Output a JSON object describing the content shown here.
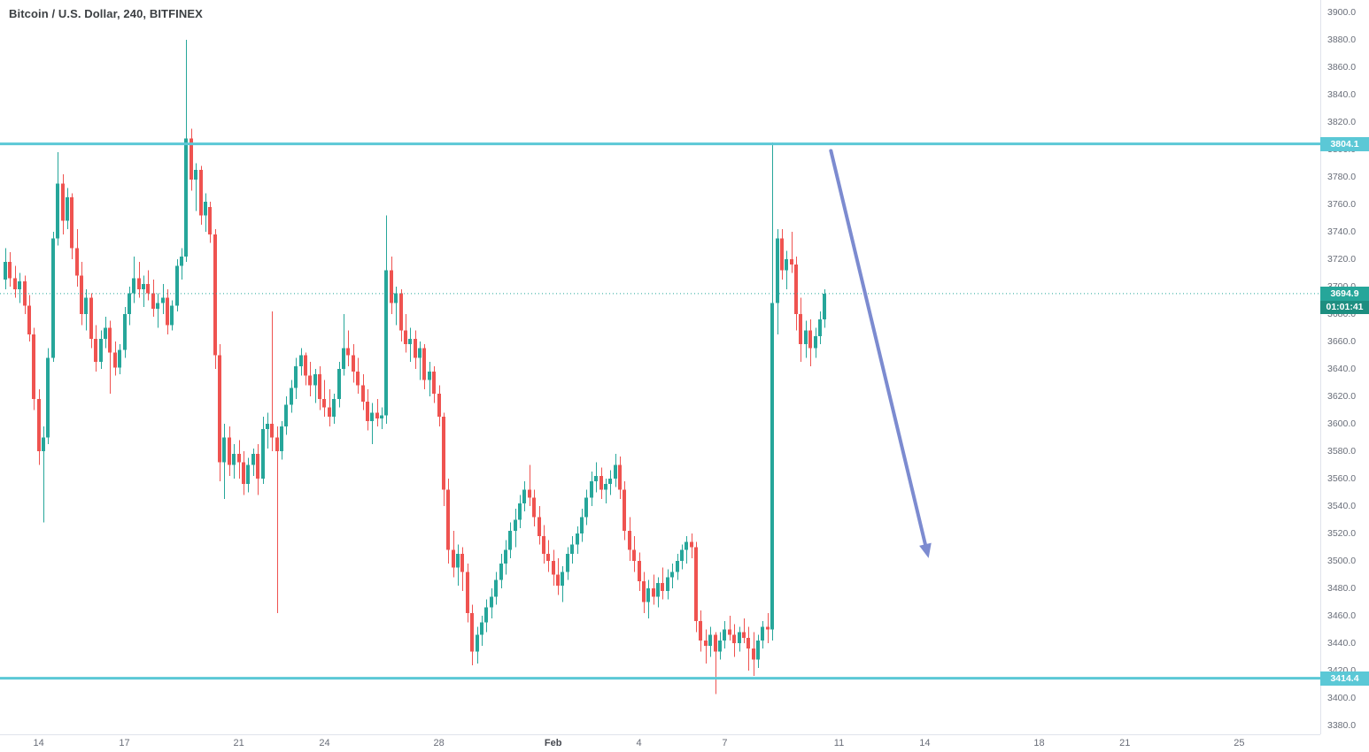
{
  "header": {
    "title": "Bitcoin / U.S. Dollar, 240, BITFINEX"
  },
  "colors": {
    "up": "#26a69a",
    "down": "#ef5350",
    "drawn_line": "#5bc8d6",
    "arrow": "#7c8bd0",
    "price_label_bg": "#26a69a",
    "countdown_bg": "#1d8e80",
    "axis_text": "#686d78"
  },
  "chart_data": {
    "type": "candlestick",
    "symbol": "Bitcoin / U.S. Dollar",
    "interval": "240",
    "exchange": "BITFINEX",
    "y_axis": {
      "min": 3380,
      "max": 3900,
      "step": 20,
      "decimals": 1
    },
    "x_axis": {
      "labels": [
        {
          "label": "14",
          "bar": 7
        },
        {
          "label": "17",
          "bar": 25
        },
        {
          "label": "21",
          "bar": 49
        },
        {
          "label": "24",
          "bar": 67
        },
        {
          "label": "28",
          "bar": 91
        },
        {
          "label": "Feb",
          "bar": 115,
          "bold": true
        },
        {
          "label": "4",
          "bar": 133
        },
        {
          "label": "7",
          "bar": 151
        },
        {
          "label": "11",
          "bar": 175
        },
        {
          "label": "14",
          "bar": 193
        },
        {
          "label": "18",
          "bar": 217
        },
        {
          "label": "21",
          "bar": 235
        },
        {
          "label": "25",
          "bar": 259
        }
      ]
    },
    "price_lines": [
      {
        "label": "3804.1",
        "value": 3804.1
      },
      {
        "label": "3414.4",
        "value": 3414.4
      }
    ],
    "current_price": {
      "label": "3694.9",
      "value": 3694.9,
      "countdown": "01:01:41"
    },
    "arrow": {
      "from": {
        "bar": 173.3,
        "price": 3799
      },
      "to": {
        "bar": 193.8,
        "price": 3502
      }
    },
    "candles": [
      [
        3705,
        3728,
        3698,
        3718
      ],
      [
        3718,
        3725,
        3700,
        3706
      ],
      [
        3706,
        3715,
        3692,
        3698
      ],
      [
        3698,
        3710,
        3688,
        3704
      ],
      [
        3704,
        3708,
        3680,
        3686
      ],
      [
        3686,
        3694,
        3660,
        3665
      ],
      [
        3665,
        3670,
        3610,
        3618
      ],
      [
        3618,
        3625,
        3570,
        3580
      ],
      [
        3580,
        3598,
        3528,
        3590
      ],
      [
        3590,
        3655,
        3585,
        3648
      ],
      [
        3648,
        3740,
        3645,
        3735
      ],
      [
        3735,
        3798,
        3730,
        3775
      ],
      [
        3775,
        3782,
        3738,
        3748
      ],
      [
        3748,
        3772,
        3742,
        3765
      ],
      [
        3765,
        3768,
        3720,
        3728
      ],
      [
        3728,
        3742,
        3700,
        3708
      ],
      [
        3708,
        3718,
        3672,
        3680
      ],
      [
        3680,
        3698,
        3668,
        3692
      ],
      [
        3692,
        3695,
        3655,
        3662
      ],
      [
        3662,
        3672,
        3638,
        3645
      ],
      [
        3645,
        3668,
        3640,
        3662
      ],
      [
        3662,
        3678,
        3655,
        3670
      ],
      [
        3670,
        3675,
        3622,
        3652
      ],
      [
        3652,
        3660,
        3635,
        3641
      ],
      [
        3641,
        3658,
        3636,
        3654
      ],
      [
        3654,
        3685,
        3648,
        3680
      ],
      [
        3680,
        3700,
        3672,
        3695
      ],
      [
        3695,
        3722,
        3688,
        3706
      ],
      [
        3706,
        3718,
        3692,
        3698
      ],
      [
        3698,
        3708,
        3685,
        3702
      ],
      [
        3702,
        3712,
        3690,
        3695
      ],
      [
        3695,
        3705,
        3678,
        3684
      ],
      [
        3684,
        3695,
        3670,
        3688
      ],
      [
        3688,
        3702,
        3680,
        3692
      ],
      [
        3692,
        3698,
        3665,
        3672
      ],
      [
        3672,
        3690,
        3668,
        3686
      ],
      [
        3686,
        3720,
        3682,
        3715
      ],
      [
        3715,
        3728,
        3705,
        3722
      ],
      [
        3722,
        3880,
        3718,
        3808
      ],
      [
        3808,
        3815,
        3770,
        3778
      ],
      [
        3778,
        3790,
        3755,
        3785
      ],
      [
        3785,
        3788,
        3745,
        3752
      ],
      [
        3752,
        3768,
        3740,
        3762
      ],
      [
        3758,
        3762,
        3732,
        3738
      ],
      [
        3738,
        3742,
        3640,
        3650
      ],
      [
        3650,
        3658,
        3558,
        3572
      ],
      [
        3572,
        3600,
        3545,
        3590
      ],
      [
        3590,
        3598,
        3562,
        3570
      ],
      [
        3570,
        3585,
        3560,
        3578
      ],
      [
        3578,
        3588,
        3560,
        3572
      ],
      [
        3572,
        3580,
        3548,
        3556
      ],
      [
        3556,
        3575,
        3550,
        3570
      ],
      [
        3570,
        3582,
        3562,
        3578
      ],
      [
        3578,
        3585,
        3548,
        3560
      ],
      [
        3560,
        3605,
        3556,
        3596
      ],
      [
        3596,
        3608,
        3582,
        3600
      ],
      [
        3600,
        3682,
        3580,
        3590
      ],
      [
        3590,
        3598,
        3462,
        3580
      ],
      [
        3580,
        3602,
        3574,
        3598
      ],
      [
        3598,
        3620,
        3592,
        3614
      ],
      [
        3614,
        3632,
        3608,
        3626
      ],
      [
        3626,
        3648,
        3618,
        3642
      ],
      [
        3642,
        3655,
        3635,
        3650
      ],
      [
        3650,
        3652,
        3628,
        3635
      ],
      [
        3635,
        3645,
        3620,
        3628
      ],
      [
        3628,
        3640,
        3615,
        3636
      ],
      [
        3636,
        3642,
        3610,
        3618
      ],
      [
        3618,
        3632,
        3605,
        3612
      ],
      [
        3612,
        3625,
        3598,
        3605
      ],
      [
        3605,
        3622,
        3600,
        3618
      ],
      [
        3618,
        3645,
        3612,
        3640
      ],
      [
        3640,
        3680,
        3635,
        3655
      ],
      [
        3655,
        3668,
        3642,
        3650
      ],
      [
        3650,
        3658,
        3630,
        3638
      ],
      [
        3638,
        3648,
        3622,
        3628
      ],
      [
        3628,
        3636,
        3610,
        3616
      ],
      [
        3616,
        3625,
        3595,
        3602
      ],
      [
        3602,
        3615,
        3585,
        3608
      ],
      [
        3608,
        3618,
        3598,
        3604
      ],
      [
        3604,
        3612,
        3596,
        3606
      ],
      [
        3606,
        3752,
        3600,
        3712
      ],
      [
        3712,
        3722,
        3680,
        3688
      ],
      [
        3688,
        3700,
        3672,
        3695
      ],
      [
        3695,
        3698,
        3660,
        3668
      ],
      [
        3668,
        3680,
        3652,
        3658
      ],
      [
        3658,
        3670,
        3645,
        3662
      ],
      [
        3662,
        3668,
        3640,
        3648
      ],
      [
        3648,
        3660,
        3632,
        3655
      ],
      [
        3655,
        3658,
        3625,
        3632
      ],
      [
        3632,
        3645,
        3620,
        3638
      ],
      [
        3638,
        3642,
        3615,
        3622
      ],
      [
        3622,
        3628,
        3598,
        3605
      ],
      [
        3605,
        3608,
        3540,
        3552
      ],
      [
        3552,
        3560,
        3498,
        3508
      ],
      [
        3508,
        3522,
        3488,
        3495
      ],
      [
        3495,
        3512,
        3482,
        3505
      ],
      [
        3505,
        3510,
        3478,
        3492
      ],
      [
        3492,
        3498,
        3455,
        3462
      ],
      [
        3462,
        3468,
        3424,
        3434
      ],
      [
        3434,
        3452,
        3425,
        3446
      ],
      [
        3446,
        3460,
        3438,
        3455
      ],
      [
        3455,
        3472,
        3448,
        3466
      ],
      [
        3466,
        3480,
        3458,
        3474
      ],
      [
        3474,
        3492,
        3468,
        3486
      ],
      [
        3486,
        3505,
        3480,
        3498
      ],
      [
        3498,
        3515,
        3490,
        3508
      ],
      [
        3508,
        3528,
        3502,
        3522
      ],
      [
        3522,
        3538,
        3510,
        3530
      ],
      [
        3530,
        3548,
        3524,
        3542
      ],
      [
        3542,
        3558,
        3536,
        3552
      ],
      [
        3552,
        3570,
        3540,
        3546
      ],
      [
        3546,
        3552,
        3525,
        3532
      ],
      [
        3532,
        3540,
        3512,
        3518
      ],
      [
        3518,
        3526,
        3498,
        3505
      ],
      [
        3505,
        3515,
        3492,
        3500
      ],
      [
        3500,
        3508,
        3482,
        3490
      ],
      [
        3490,
        3502,
        3475,
        3482
      ],
      [
        3482,
        3496,
        3470,
        3492
      ],
      [
        3492,
        3510,
        3486,
        3505
      ],
      [
        3505,
        3518,
        3498,
        3512
      ],
      [
        3512,
        3525,
        3505,
        3520
      ],
      [
        3520,
        3538,
        3514,
        3532
      ],
      [
        3532,
        3552,
        3526,
        3546
      ],
      [
        3546,
        3565,
        3540,
        3558
      ],
      [
        3558,
        3572,
        3550,
        3562
      ],
      [
        3562,
        3568,
        3545,
        3552
      ],
      [
        3552,
        3560,
        3542,
        3556
      ],
      [
        3556,
        3566,
        3548,
        3560
      ],
      [
        3560,
        3578,
        3554,
        3570
      ],
      [
        3570,
        3576,
        3545,
        3552
      ],
      [
        3552,
        3558,
        3515,
        3522
      ],
      [
        3522,
        3532,
        3500,
        3508
      ],
      [
        3508,
        3518,
        3492,
        3500
      ],
      [
        3500,
        3506,
        3478,
        3485
      ],
      [
        3485,
        3492,
        3462,
        3470
      ],
      [
        3470,
        3486,
        3458,
        3480
      ],
      [
        3480,
        3490,
        3468,
        3474
      ],
      [
        3474,
        3488,
        3466,
        3484
      ],
      [
        3484,
        3495,
        3472,
        3478
      ],
      [
        3478,
        3494,
        3472,
        3488
      ],
      [
        3488,
        3498,
        3480,
        3492
      ],
      [
        3492,
        3505,
        3486,
        3500
      ],
      [
        3500,
        3512,
        3494,
        3508
      ],
      [
        3508,
        3518,
        3498,
        3514
      ],
      [
        3514,
        3520,
        3502,
        3510
      ],
      [
        3510,
        3514,
        3448,
        3456
      ],
      [
        3456,
        3464,
        3434,
        3442
      ],
      [
        3442,
        3450,
        3425,
        3438
      ],
      [
        3438,
        3452,
        3430,
        3446
      ],
      [
        3446,
        3448,
        3403,
        3434
      ],
      [
        3434,
        3448,
        3428,
        3442
      ],
      [
        3442,
        3456,
        3436,
        3450
      ],
      [
        3450,
        3460,
        3442,
        3446
      ],
      [
        3446,
        3454,
        3430,
        3440
      ],
      [
        3440,
        3452,
        3434,
        3448
      ],
      [
        3448,
        3458,
        3440,
        3444
      ],
      [
        3444,
        3452,
        3420,
        3436
      ],
      [
        3436,
        3448,
        3416,
        3428
      ],
      [
        3428,
        3446,
        3422,
        3442
      ],
      [
        3442,
        3456,
        3436,
        3452
      ],
      [
        3452,
        3462,
        3440,
        3450
      ],
      [
        3450,
        3805,
        3442,
        3688
      ],
      [
        3688,
        3742,
        3665,
        3735
      ],
      [
        3735,
        3742,
        3705,
        3712
      ],
      [
        3712,
        3726,
        3698,
        3720
      ],
      [
        3720,
        3740,
        3710,
        3716
      ],
      [
        3716,
        3722,
        3668,
        3680
      ],
      [
        3680,
        3692,
        3645,
        3658
      ],
      [
        3658,
        3675,
        3648,
        3668
      ],
      [
        3668,
        3676,
        3642,
        3655
      ],
      [
        3655,
        3670,
        3648,
        3664
      ],
      [
        3664,
        3682,
        3658,
        3676
      ],
      [
        3676,
        3698,
        3670,
        3694.9
      ]
    ]
  }
}
